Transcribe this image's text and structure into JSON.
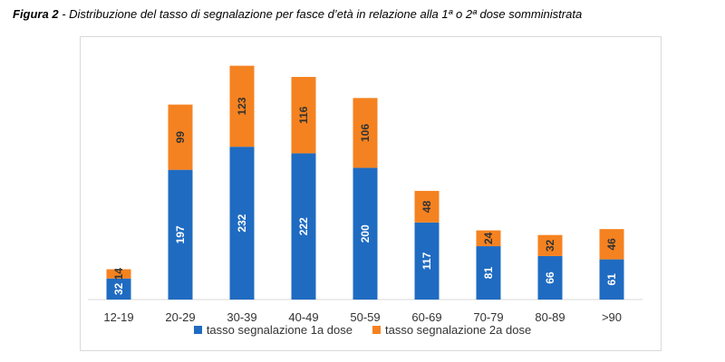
{
  "caption": {
    "bold": "Figura 2",
    "text": " - Distribuzione del tasso di segnalazione per fasce d’età in relazione alla 1ª o 2ª dose somministrata"
  },
  "colors": {
    "series1": "#1f6bc1",
    "series2": "#f58220",
    "axis": "#d9d9d9",
    "text": "#333333"
  },
  "chart_data": {
    "type": "bar",
    "stacked": true,
    "categories": [
      "12-19",
      "20-29",
      "30-39",
      "40-49",
      "50-59",
      "60-69",
      "70-79",
      "80-89",
      ">90"
    ],
    "series": [
      {
        "name": "tasso segnalazione 1a dose",
        "values": [
          32,
          197,
          232,
          222,
          200,
          117,
          81,
          66,
          61
        ]
      },
      {
        "name": "tasso segnalazione 2a dose",
        "values": [
          14,
          99,
          123,
          116,
          106,
          48,
          24,
          32,
          46
        ]
      }
    ],
    "title": "",
    "xlabel": "",
    "ylabel": "",
    "ylim": [
      0,
      360
    ],
    "legend": "bottom",
    "grid": false
  }
}
